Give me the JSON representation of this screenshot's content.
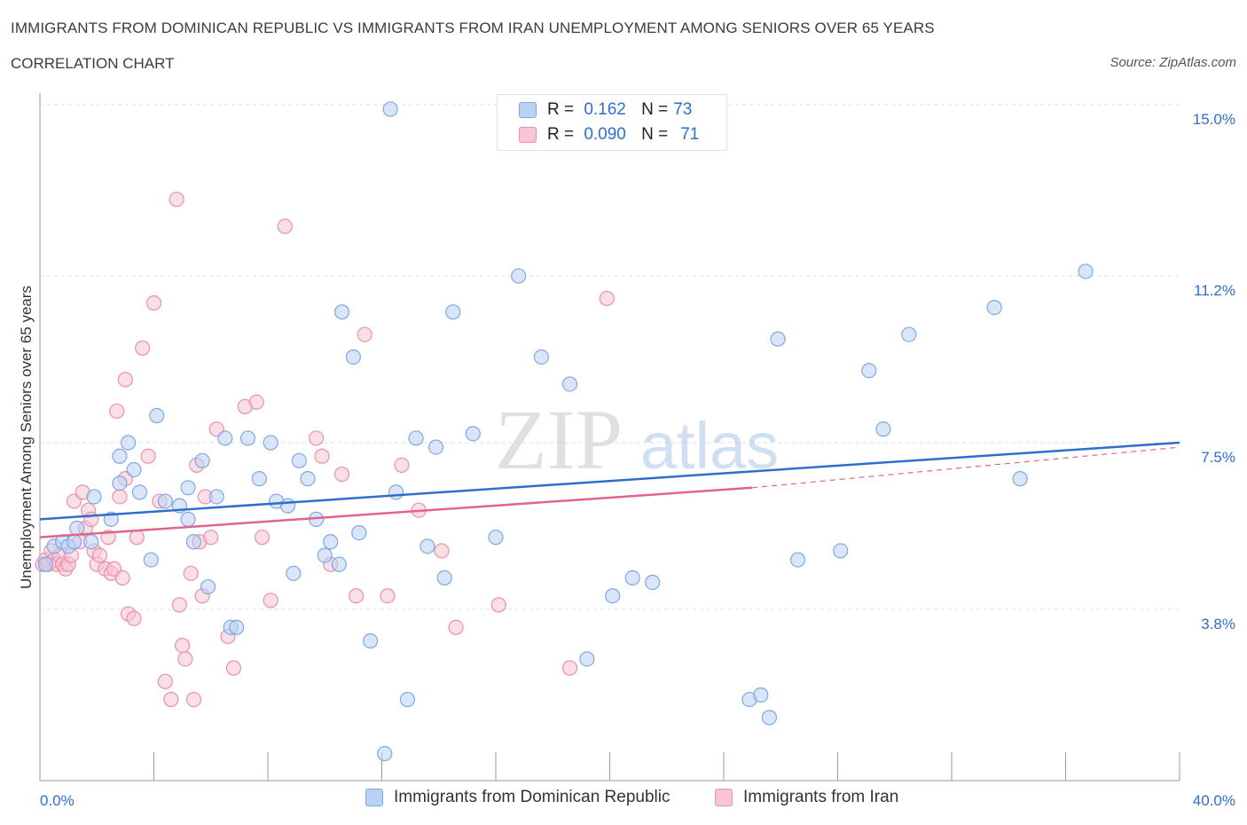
{
  "header": {
    "title": "IMMIGRANTS FROM DOMINICAN REPUBLIC VS IMMIGRANTS FROM IRAN UNEMPLOYMENT AMONG SENIORS OVER 65 YEARS",
    "subtitle": "CORRELATION CHART",
    "source": "Source: ZipAtlas.com"
  },
  "watermark": {
    "part1": "ZIP",
    "part2": "atlas"
  },
  "legend_stats": {
    "row1": {
      "r_label": "R =",
      "r_value": "0.162",
      "n_label": "N =",
      "n_value": "73"
    },
    "row2": {
      "r_label": "R =",
      "r_value": "0.090",
      "n_label": "N =",
      "n_value": "71"
    }
  },
  "bottom_legend": {
    "series1": "Immigrants from Dominican Republic",
    "series2": "Immigrants from Iran"
  },
  "colors": {
    "blue_fill": "#b9d2f4",
    "blue_stroke": "#7fa8e0",
    "blue_line": "#2f6ecf",
    "pink_fill": "#f7c5d4",
    "pink_stroke": "#ec8fad",
    "pink_line": "#e2648d",
    "axis_label": "#2f6ecf",
    "grid": "#dcdcdc"
  },
  "chart_data": {
    "type": "scatter",
    "ylabel": "Unemployment Among Seniors over 65 years",
    "xlim": [
      0,
      40
    ],
    "ylim": [
      0,
      15
    ],
    "x_tick_labels": [
      {
        "value": 0,
        "label": "0.0%"
      },
      {
        "value": 40,
        "label": "40.0%"
      }
    ],
    "y_tick_labels": [
      {
        "value": 3.8,
        "label": "3.8%"
      },
      {
        "value": 7.5,
        "label": "7.5%"
      },
      {
        "value": 11.2,
        "label": "11.2%"
      },
      {
        "value": 15.0,
        "label": "15.0%"
      }
    ],
    "x_minor_ticks": [
      4,
      8,
      12,
      16,
      20,
      24,
      28,
      32,
      36,
      40
    ],
    "grid": true,
    "series": [
      {
        "name": "Immigrants from Dominican Republic",
        "color": "blue",
        "trend": {
          "x": [
            0,
            40
          ],
          "y": [
            5.8,
            7.5
          ]
        },
        "points": [
          [
            0.2,
            4.8
          ],
          [
            0.5,
            5.2
          ],
          [
            0.8,
            5.3
          ],
          [
            1.0,
            5.2
          ],
          [
            1.2,
            5.3
          ],
          [
            1.3,
            5.6
          ],
          [
            1.8,
            5.3
          ],
          [
            1.9,
            6.3
          ],
          [
            2.5,
            5.8
          ],
          [
            2.8,
            6.6
          ],
          [
            2.8,
            7.2
          ],
          [
            3.1,
            7.5
          ],
          [
            3.3,
            6.9
          ],
          [
            3.5,
            6.4
          ],
          [
            3.9,
            4.9
          ],
          [
            4.1,
            8.1
          ],
          [
            4.4,
            6.2
          ],
          [
            4.9,
            6.1
          ],
          [
            5.2,
            5.8
          ],
          [
            5.2,
            6.5
          ],
          [
            5.4,
            5.3
          ],
          [
            5.7,
            7.1
          ],
          [
            5.9,
            4.3
          ],
          [
            6.2,
            6.3
          ],
          [
            6.5,
            7.6
          ],
          [
            6.7,
            3.4
          ],
          [
            6.9,
            3.4
          ],
          [
            7.3,
            7.6
          ],
          [
            7.7,
            6.7
          ],
          [
            8.1,
            7.5
          ],
          [
            8.3,
            6.2
          ],
          [
            8.7,
            6.1
          ],
          [
            8.9,
            4.6
          ],
          [
            9.1,
            7.1
          ],
          [
            9.4,
            6.7
          ],
          [
            9.7,
            5.8
          ],
          [
            10.0,
            5.0
          ],
          [
            10.2,
            5.3
          ],
          [
            10.5,
            4.8
          ],
          [
            10.6,
            10.4
          ],
          [
            11.0,
            9.4
          ],
          [
            11.2,
            5.5
          ],
          [
            11.6,
            3.1
          ],
          [
            12.3,
            14.9
          ],
          [
            12.5,
            6.4
          ],
          [
            12.9,
            1.8
          ],
          [
            13.2,
            7.6
          ],
          [
            13.6,
            5.2
          ],
          [
            13.9,
            7.4
          ],
          [
            14.2,
            4.5
          ],
          [
            14.5,
            10.4
          ],
          [
            15.2,
            7.7
          ],
          [
            16.0,
            5.4
          ],
          [
            16.8,
            11.2
          ],
          [
            17.6,
            9.4
          ],
          [
            18.6,
            8.8
          ],
          [
            19.2,
            2.7
          ],
          [
            20.1,
            4.1
          ],
          [
            20.8,
            4.5
          ],
          [
            21.5,
            4.4
          ],
          [
            24.9,
            1.8
          ],
          [
            25.3,
            1.9
          ],
          [
            25.6,
            1.4
          ],
          [
            25.9,
            9.8
          ],
          [
            26.6,
            4.9
          ],
          [
            28.1,
            5.1
          ],
          [
            29.1,
            9.1
          ],
          [
            29.6,
            7.8
          ],
          [
            30.5,
            9.9
          ],
          [
            33.5,
            10.5
          ],
          [
            34.4,
            6.7
          ],
          [
            36.7,
            11.3
          ],
          [
            12.1,
            0.6
          ]
        ]
      },
      {
        "name": "Immigrants from Iran",
        "color": "pink",
        "trend": {
          "x": [
            0,
            25
          ],
          "y": [
            5.4,
            6.5
          ]
        },
        "trend_extension": {
          "x": [
            25,
            40
          ],
          "y": [
            6.5,
            7.4
          ]
        },
        "points": [
          [
            0.1,
            4.8
          ],
          [
            0.2,
            4.9
          ],
          [
            0.3,
            4.8
          ],
          [
            0.4,
            5.1
          ],
          [
            0.5,
            4.9
          ],
          [
            0.6,
            4.8
          ],
          [
            0.7,
            5.0
          ],
          [
            0.8,
            4.8
          ],
          [
            0.9,
            4.7
          ],
          [
            1.0,
            4.8
          ],
          [
            1.1,
            5.0
          ],
          [
            1.2,
            6.2
          ],
          [
            1.4,
            5.3
          ],
          [
            1.5,
            6.4
          ],
          [
            1.6,
            5.6
          ],
          [
            1.7,
            6.0
          ],
          [
            1.8,
            5.8
          ],
          [
            1.9,
            5.1
          ],
          [
            2.0,
            4.8
          ],
          [
            2.1,
            5.0
          ],
          [
            2.3,
            4.7
          ],
          [
            2.4,
            5.4
          ],
          [
            2.5,
            4.6
          ],
          [
            2.6,
            4.7
          ],
          [
            2.8,
            6.3
          ],
          [
            2.9,
            4.5
          ],
          [
            3.0,
            6.7
          ],
          [
            3.1,
            3.7
          ],
          [
            3.3,
            3.6
          ],
          [
            3.4,
            5.4
          ],
          [
            3.6,
            9.6
          ],
          [
            3.8,
            7.2
          ],
          [
            4.0,
            10.6
          ],
          [
            4.2,
            6.2
          ],
          [
            4.4,
            2.2
          ],
          [
            4.6,
            1.8
          ],
          [
            4.8,
            12.9
          ],
          [
            4.9,
            3.9
          ],
          [
            5.0,
            3.0
          ],
          [
            5.1,
            2.7
          ],
          [
            5.3,
            4.6
          ],
          [
            5.4,
            1.8
          ],
          [
            5.5,
            7.0
          ],
          [
            5.6,
            5.3
          ],
          [
            5.7,
            4.1
          ],
          [
            5.8,
            6.3
          ],
          [
            6.0,
            5.4
          ],
          [
            6.2,
            7.8
          ],
          [
            6.6,
            3.2
          ],
          [
            6.8,
            2.5
          ],
          [
            7.2,
            8.3
          ],
          [
            7.6,
            8.4
          ],
          [
            7.8,
            5.4
          ],
          [
            8.1,
            4.0
          ],
          [
            8.6,
            12.3
          ],
          [
            9.7,
            7.6
          ],
          [
            9.9,
            7.2
          ],
          [
            10.2,
            4.8
          ],
          [
            10.6,
            6.8
          ],
          [
            11.1,
            4.1
          ],
          [
            11.4,
            9.9
          ],
          [
            12.2,
            4.1
          ],
          [
            12.7,
            7.0
          ],
          [
            13.3,
            6.0
          ],
          [
            14.1,
            5.1
          ],
          [
            14.6,
            3.4
          ],
          [
            16.1,
            3.9
          ],
          [
            18.6,
            2.5
          ],
          [
            19.9,
            10.7
          ],
          [
            2.7,
            8.2
          ],
          [
            3.0,
            8.9
          ]
        ]
      }
    ]
  }
}
